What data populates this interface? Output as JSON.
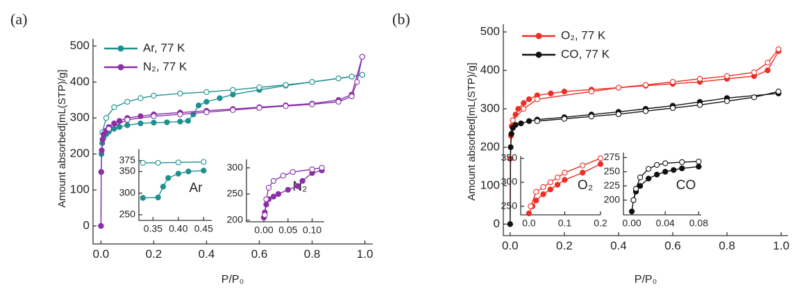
{
  "chart_data": [
    {
      "type": "line",
      "label": "(a)",
      "xlabel": "P/P₀",
      "ylabel": "Amount absorbed[mL(STP)/g]",
      "xlim": [
        -0.03,
        1.03
      ],
      "ylim": [
        -50,
        520
      ],
      "xticks": [
        {
          "value": 0,
          "label": "0.0"
        },
        {
          "value": 0.2,
          "label": "0.2"
        },
        {
          "value": 0.4,
          "label": "0.4"
        },
        {
          "value": 0.6,
          "label": "0.6"
        },
        {
          "value": 0.8,
          "label": "0.8"
        },
        {
          "value": 1,
          "label": "1.0"
        }
      ],
      "yticks": [
        0,
        100,
        200,
        300,
        400,
        500
      ],
      "series": [
        {
          "name": "Ar, 77 K",
          "color": "#1e9090",
          "marker": "filled",
          "x": [
            0,
            0.001,
            0.002,
            0.005,
            0.01,
            0.02,
            0.03,
            0.05,
            0.07,
            0.1,
            0.15,
            0.2,
            0.25,
            0.3,
            0.33,
            0.35,
            0.37,
            0.4,
            0.45,
            0.5,
            0.6,
            0.7,
            0.8,
            0.9,
            0.95,
            0.99
          ],
          "values": [
            0,
            150,
            200,
            230,
            245,
            255,
            262,
            270,
            275,
            280,
            285,
            287,
            288,
            290,
            292,
            310,
            335,
            345,
            355,
            365,
            378,
            390,
            400,
            410,
            415,
            420
          ]
        },
        {
          "color": "#1e9090",
          "marker": "open",
          "x": [
            0.99,
            0.95,
            0.9,
            0.8,
            0.7,
            0.6,
            0.5,
            0.4,
            0.3,
            0.2,
            0.15,
            0.1,
            0.05,
            0.02,
            0.005
          ],
          "values": [
            420,
            415,
            410,
            400,
            392,
            385,
            378,
            372,
            368,
            362,
            355,
            345,
            330,
            300,
            260
          ]
        },
        {
          "name": "N₂, 77 K",
          "color": "#8a2fa6",
          "marker": "filled",
          "x": [
            0,
            0.001,
            0.003,
            0.006,
            0.01,
            0.02,
            0.03,
            0.05,
            0.07,
            0.1,
            0.15,
            0.2,
            0.3,
            0.4,
            0.5,
            0.6,
            0.7,
            0.8,
            0.9,
            0.95,
            0.99
          ],
          "values": [
            0,
            150,
            210,
            240,
            255,
            265,
            275,
            285,
            292,
            300,
            305,
            310,
            315,
            320,
            325,
            330,
            335,
            340,
            350,
            365,
            470
          ]
        },
        {
          "color": "#8a2fa6",
          "marker": "open",
          "x": [
            0.99,
            0.97,
            0.95,
            0.9,
            0.8,
            0.7,
            0.6,
            0.5,
            0.4,
            0.3,
            0.2,
            0.1,
            0.03
          ],
          "values": [
            470,
            400,
            360,
            345,
            338,
            333,
            328,
            322,
            316,
            310,
            305,
            295,
            270
          ]
        }
      ]
    },
    {
      "type": "line",
      "annotation": "Ar",
      "xlim": [
        0.322,
        0.466
      ],
      "ylim": [
        237,
        402
      ],
      "xticks": [
        0.35,
        {
          "value": 0.4,
          "label": "0.40"
        },
        0.45
      ],
      "yticks": [
        250,
        300,
        350,
        375
      ],
      "series": [
        {
          "color": "#1e9090",
          "marker": "filled",
          "x": [
            0.33,
            0.36,
            0.37,
            0.38,
            0.4,
            0.42,
            0.45
          ],
          "values": [
            289,
            290,
            315,
            335,
            345,
            350,
            352
          ]
        },
        {
          "color": "#1e9090",
          "marker": "open",
          "x": [
            0.33,
            0.36,
            0.4,
            0.45
          ],
          "values": [
            370,
            370,
            371,
            372
          ]
        }
      ]
    },
    {
      "type": "line",
      "annotation": "N₂",
      "xlim": [
        -0.036,
        0.125
      ],
      "ylim": [
        197,
        316
      ],
      "xticks": [
        {
          "value": 0,
          "label": "0.00"
        },
        0.05,
        {
          "value": 0.1,
          "label": "0.10"
        }
      ],
      "yticks": [
        200,
        250,
        300
      ],
      "series": [
        {
          "color": "#8a2fa6",
          "marker": "filled",
          "x": [
            0,
            0.002,
            0.005,
            0.01,
            0.02,
            0.03,
            0.05,
            0.07,
            0.08,
            0.1,
            0.12
          ],
          "values": [
            205,
            215,
            230,
            240,
            245,
            250,
            258,
            265,
            275,
            290,
            295
          ]
        },
        {
          "color": "#8a2fa6",
          "marker": "open",
          "x": [
            0.002,
            0.005,
            0.01,
            0.02,
            0.04,
            0.06,
            0.1,
            0.12
          ],
          "values": [
            210,
            240,
            262,
            275,
            285,
            292,
            297,
            300
          ]
        }
      ]
    },
    {
      "type": "line",
      "label": "(b)",
      "xlabel": "P/P₀",
      "ylabel": "Amount absorbed[mL(STP)/g]",
      "xlim": [
        -0.025,
        1.025
      ],
      "ylim": [
        -30,
        520
      ],
      "xticks": [
        {
          "value": 0,
          "label": "0.0"
        },
        {
          "value": 0.2,
          "label": "0.2"
        },
        {
          "value": 0.4,
          "label": "0.4"
        },
        {
          "value": 0.6,
          "label": "0.6"
        },
        {
          "value": 0.8,
          "label": "0.8"
        },
        {
          "value": 1,
          "label": "1.0"
        }
      ],
      "yticks": [
        0,
        100,
        200,
        300,
        400,
        500
      ],
      "series": [
        {
          "name": "O₂, 77 K",
          "color": "#ee2e24",
          "marker": "filled",
          "x": [
            0,
            0.001,
            0.003,
            0.006,
            0.01,
            0.02,
            0.03,
            0.05,
            0.07,
            0.1,
            0.15,
            0.2,
            0.3,
            0.4,
            0.5,
            0.6,
            0.7,
            0.8,
            0.9,
            0.95,
            0.99
          ],
          "values": [
            0,
            170,
            230,
            255,
            270,
            285,
            300,
            315,
            325,
            335,
            340,
            345,
            350,
            355,
            360,
            365,
            370,
            378,
            385,
            400,
            450
          ]
        },
        {
          "color": "#ee2e24",
          "marker": "open",
          "x": [
            0.99,
            0.95,
            0.9,
            0.8,
            0.7,
            0.6,
            0.5,
            0.4,
            0.3,
            0.1,
            0.05,
            0.01
          ],
          "values": [
            455,
            420,
            395,
            385,
            378,
            370,
            362,
            355,
            345,
            325,
            300,
            270
          ]
        },
        {
          "name": "CO, 77 K",
          "color": "#111111",
          "marker": "filled",
          "x": [
            0,
            0.002,
            0.005,
            0.01,
            0.02,
            0.04,
            0.07,
            0.1,
            0.2,
            0.3,
            0.4,
            0.5,
            0.6,
            0.7,
            0.8,
            0.99
          ],
          "values": [
            0,
            200,
            235,
            250,
            258,
            262,
            268,
            272,
            278,
            285,
            292,
            300,
            308,
            318,
            328,
            340
          ]
        },
        {
          "color": "#111111",
          "marker": "open",
          "x": [
            0.99,
            0.9,
            0.8,
            0.7,
            0.6,
            0.5,
            0.4,
            0.3,
            0.2,
            0.1
          ],
          "values": [
            345,
            330,
            320,
            310,
            302,
            294,
            286,
            280,
            274,
            268
          ]
        }
      ]
    },
    {
      "type": "line",
      "annotation": "O₂",
      "xlim": [
        -0.023,
        0.2
      ],
      "ylim": [
        232,
        355
      ],
      "xticks": [
        {
          "value": 0,
          "label": "0.0"
        },
        0.1,
        0.2
      ],
      "yticks": [
        250,
        300,
        350
      ],
      "series": [
        {
          "color": "#ee2e24",
          "marker": "filled",
          "x": [
            0,
            0.01,
            0.02,
            0.04,
            0.06,
            0.08,
            0.1,
            0.15,
            0.2
          ],
          "values": [
            235,
            250,
            262,
            275,
            285,
            295,
            305,
            320,
            338
          ]
        },
        {
          "color": "#ee2e24",
          "marker": "open",
          "x": [
            0.005,
            0.02,
            0.04,
            0.06,
            0.08,
            0.1,
            0.15,
            0.2
          ],
          "values": [
            250,
            280,
            290,
            300,
            310,
            320,
            335,
            350
          ]
        }
      ]
    },
    {
      "type": "line",
      "annotation": "CO",
      "xlim": [
        -0.01,
        0.083
      ],
      "ylim": [
        174,
        284
      ],
      "xticks": [
        {
          "value": 0,
          "label": "0.00"
        },
        0.04,
        0.08
      ],
      "yticks": [
        200,
        225,
        250,
        275
      ],
      "series": [
        {
          "color": "#111111",
          "marker": "filled",
          "x": [
            0,
            0.002,
            0.005,
            0.01,
            0.02,
            0.03,
            0.04,
            0.05,
            0.06,
            0.08
          ],
          "values": [
            180,
            200,
            215,
            225,
            238,
            245,
            250,
            253,
            256,
            259
          ]
        },
        {
          "color": "#111111",
          "marker": "open",
          "x": [
            0.002,
            0.005,
            0.01,
            0.02,
            0.03,
            0.04,
            0.06,
            0.08
          ],
          "values": [
            200,
            220,
            240,
            255,
            262,
            265,
            267,
            268
          ]
        }
      ]
    }
  ]
}
